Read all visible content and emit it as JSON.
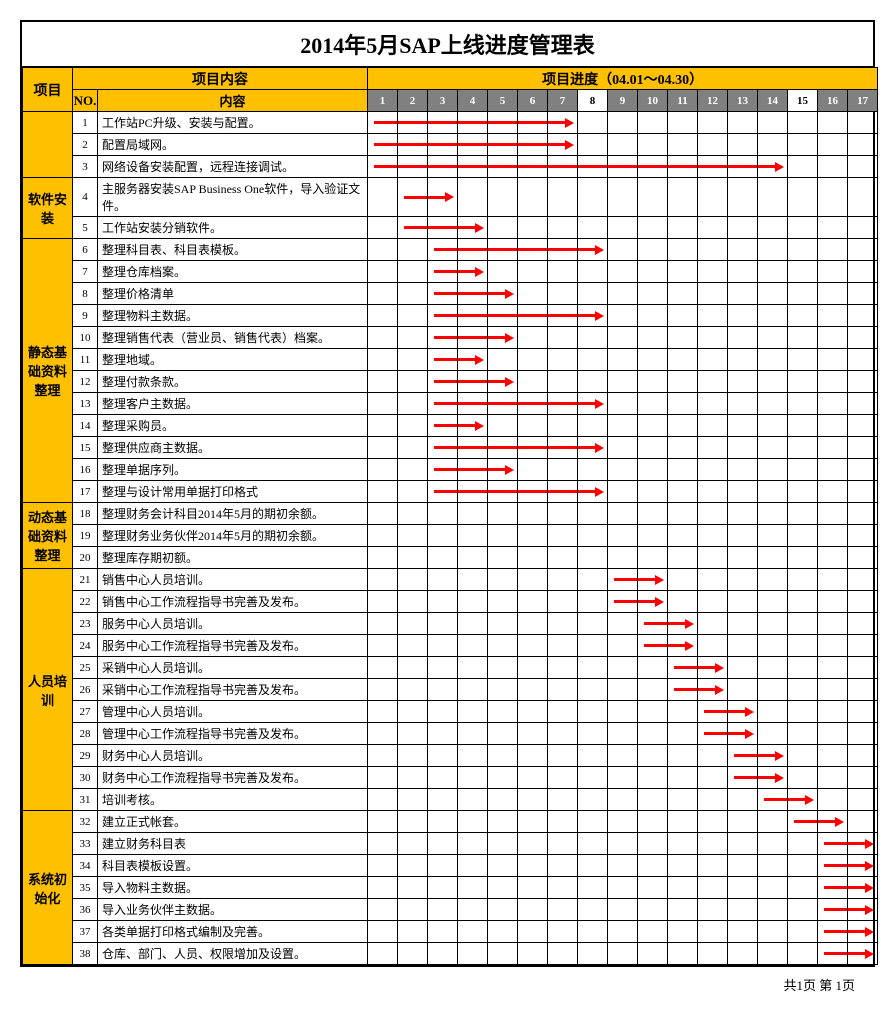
{
  "title": "2014年5月SAP上线进度管理表",
  "headers": {
    "project": "项目",
    "content_section": "项目内容",
    "progress_section": "项目进度（04.01～04.30）",
    "no": "NO.",
    "content": "内容"
  },
  "columns": {
    "category_w": 50,
    "no_w": 25,
    "content_w": 270,
    "day_w": 30,
    "day_count": 17,
    "white_days": [
      8,
      15
    ]
  },
  "colors": {
    "header_bg": "#ffc000",
    "num_bg": "#808080",
    "arrow": "#ff0000",
    "border": "#000000"
  },
  "categories": [
    {
      "name": "",
      "rowspan": 3,
      "rows": [
        {
          "no": 1,
          "text": "工作站PC升级、安装与配置。",
          "start": 1,
          "end": 7
        },
        {
          "no": 2,
          "text": "配置局域网。",
          "start": 1,
          "end": 7
        },
        {
          "no": 3,
          "text": "网络设备安装配置，远程连接调试。",
          "start": 1,
          "end": 14
        }
      ]
    },
    {
      "name": "软件安装",
      "rowspan": 2,
      "rows": [
        {
          "no": 4,
          "text": "主服务器安装SAP Business One软件，导入验证文件。",
          "start": 2,
          "end": 3,
          "tall": true
        },
        {
          "no": 5,
          "text": "工作站安装分销软件。",
          "start": 2,
          "end": 4
        }
      ]
    },
    {
      "name": "静态基础资料整理",
      "rowspan": 12,
      "rows": [
        {
          "no": 6,
          "text": "整理科目表、科目表模板。",
          "start": 3,
          "end": 8
        },
        {
          "no": 7,
          "text": "整理仓库档案。",
          "start": 3,
          "end": 4
        },
        {
          "no": 8,
          "text": "整理价格清单",
          "start": 3,
          "end": 5
        },
        {
          "no": 9,
          "text": "整理物料主数据。",
          "start": 3,
          "end": 8
        },
        {
          "no": 10,
          "text": "整理销售代表（营业员、销售代表）档案。",
          "start": 3,
          "end": 5
        },
        {
          "no": 11,
          "text": "整理地域。",
          "start": 3,
          "end": 4
        },
        {
          "no": 12,
          "text": "整理付款条款。",
          "start": 3,
          "end": 5
        },
        {
          "no": 13,
          "text": "整理客户主数据。",
          "start": 3,
          "end": 8
        },
        {
          "no": 14,
          "text": "整理采购员。",
          "start": 3,
          "end": 4
        },
        {
          "no": 15,
          "text": "整理供应商主数据。",
          "start": 3,
          "end": 8
        },
        {
          "no": 16,
          "text": "整理单据序列。",
          "start": 3,
          "end": 5
        },
        {
          "no": 17,
          "text": "整理与设计常用单据打印格式",
          "start": 3,
          "end": 8
        }
      ]
    },
    {
      "name": "动态基础资料整理",
      "rowspan": 3,
      "rows": [
        {
          "no": 18,
          "text": "整理财务会计科目2014年5月的期初余额。",
          "start": 0,
          "end": 0
        },
        {
          "no": 19,
          "text": "整理财务业务伙伴2014年5月的期初余额。",
          "start": 0,
          "end": 0
        },
        {
          "no": 20,
          "text": "整理库存期初额。",
          "start": 0,
          "end": 0
        }
      ]
    },
    {
      "name": "人员培训",
      "rowspan": 11,
      "rows": [
        {
          "no": 21,
          "text": "销售中心人员培训。",
          "start": 9,
          "end": 10
        },
        {
          "no": 22,
          "text": "销售中心工作流程指导书完善及发布。",
          "start": 9,
          "end": 10
        },
        {
          "no": 23,
          "text": "服务中心人员培训。",
          "start": 10,
          "end": 11
        },
        {
          "no": 24,
          "text": "服务中心工作流程指导书完善及发布。",
          "start": 10,
          "end": 11
        },
        {
          "no": 25,
          "text": "采销中心人员培训。",
          "start": 11,
          "end": 12
        },
        {
          "no": 26,
          "text": "采销中心工作流程指导书完善及发布。",
          "start": 11,
          "end": 12
        },
        {
          "no": 27,
          "text": "管理中心人员培训。",
          "start": 12,
          "end": 13
        },
        {
          "no": 28,
          "text": "管理中心工作流程指导书完善及发布。",
          "start": 12,
          "end": 13
        },
        {
          "no": 29,
          "text": "财务中心人员培训。",
          "start": 13,
          "end": 14
        },
        {
          "no": 30,
          "text": "财务中心工作流程指导书完善及发布。",
          "start": 13,
          "end": 14
        },
        {
          "no": 31,
          "text": "培训考核。",
          "start": 14,
          "end": 15
        }
      ]
    },
    {
      "name": "系统初始化",
      "rowspan": 7,
      "rows": [
        {
          "no": 32,
          "text": "建立正式帐套。",
          "start": 15,
          "end": 16
        },
        {
          "no": 33,
          "text": "建立财务科目表",
          "start": 16,
          "end": 17
        },
        {
          "no": 34,
          "text": "科目表模板设置。",
          "start": 16,
          "end": 17
        },
        {
          "no": 35,
          "text": "导入物料主数据。",
          "start": 16,
          "end": 17
        },
        {
          "no": 36,
          "text": "导入业务伙伴主数据。",
          "start": 16,
          "end": 17
        },
        {
          "no": 37,
          "text": "各类单据打印格式编制及完善。",
          "start": 16,
          "end": 17
        },
        {
          "no": 38,
          "text": "仓库、部门、人员、权限增加及设置。",
          "start": 16,
          "end": 17
        }
      ]
    }
  ],
  "footer": "共1页 第 1页"
}
